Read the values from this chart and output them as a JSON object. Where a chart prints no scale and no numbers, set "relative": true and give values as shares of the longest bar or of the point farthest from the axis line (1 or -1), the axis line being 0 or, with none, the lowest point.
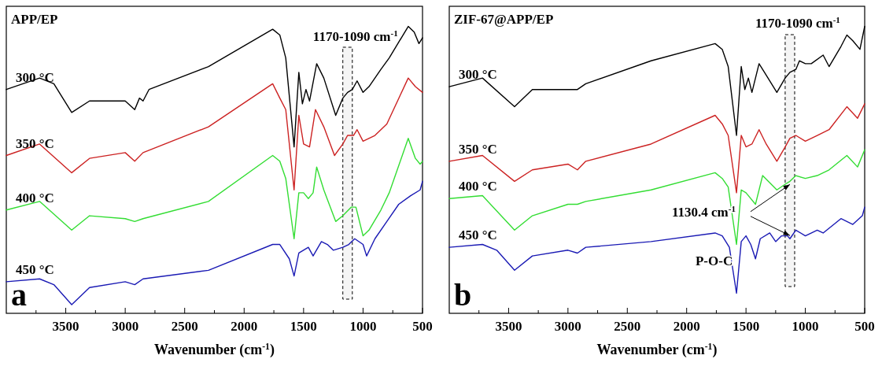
{
  "chart_data": [
    {
      "type": "line",
      "title": "APP/EP",
      "xlabel": "Wavenumber (cm$^{-1}$)",
      "relative": true,
      "xlim": [
        4000,
        500
      ],
      "xticks": [
        {
          "value": 3750,
          "label": null
        },
        3500,
        {
          "value": 3250,
          "label": null
        },
        3000,
        {
          "value": 2750,
          "label": null
        },
        2500,
        {
          "value": 2250,
          "label": null
        },
        2000,
        {
          "value": 1750,
          "label": null
        },
        1500,
        {
          "value": 1250,
          "label": null
        },
        1000,
        {
          "value": 750,
          "label": null
        },
        500
      ],
      "tick_labels": "x",
      "grid": false,
      "marker": "none",
      "line_style": "solid",
      "bands": [
        {
          "axis": "x",
          "from": 1170,
          "to": 1090,
          "label": "1170-1090 cm$^{-1}$"
        }
      ],
      "annotations": [
        "a"
      ],
      "series": [
        {
          "name": "300 °C",
          "color": "#000000",
          "x": [
            4000,
            3720,
            3600,
            3450,
            3300,
            3000,
            2920,
            2880,
            2850,
            2800,
            2300,
            1760,
            1700,
            1650,
            1580,
            1540,
            1510,
            1480,
            1450,
            1390,
            1330,
            1230,
            1170,
            1130,
            1090,
            1050,
            1000,
            950,
            850,
            780,
            620,
            570,
            530,
            500
          ],
          "values": [
            0.78,
            0.82,
            0.8,
            0.7,
            0.74,
            0.74,
            0.71,
            0.75,
            0.74,
            0.78,
            0.86,
            0.99,
            0.97,
            0.89,
            0.58,
            0.84,
            0.73,
            0.78,
            0.74,
            0.87,
            0.82,
            0.69,
            0.75,
            0.77,
            0.78,
            0.81,
            0.77,
            0.79,
            0.85,
            0.89,
            1,
            0.98,
            0.94,
            0.96
          ]
        },
        {
          "name": "350 °C",
          "color": "#cc2222",
          "x": [
            4000,
            3720,
            3450,
            3300,
            3000,
            2920,
            2850,
            2300,
            1760,
            1700,
            1650,
            1580,
            1540,
            1500,
            1450,
            1400,
            1330,
            1240,
            1170,
            1130,
            1080,
            1050,
            1000,
            900,
            800,
            620,
            560,
            500
          ],
          "values": [
            0.55,
            0.59,
            0.49,
            0.54,
            0.56,
            0.53,
            0.56,
            0.65,
            0.8,
            0.75,
            0.71,
            0.43,
            0.69,
            0.59,
            0.58,
            0.71,
            0.65,
            0.55,
            0.59,
            0.62,
            0.62,
            0.64,
            0.6,
            0.62,
            0.66,
            0.82,
            0.79,
            0.77
          ]
        },
        {
          "name": "400 °C",
          "color": "#33dd33",
          "x": [
            4000,
            3720,
            3450,
            3300,
            3000,
            2920,
            2850,
            2300,
            1760,
            1700,
            1650,
            1580,
            1540,
            1500,
            1460,
            1420,
            1390,
            1330,
            1230,
            1170,
            1100,
            1060,
            1000,
            950,
            850,
            780,
            620,
            560,
            520,
            500
          ],
          "values": [
            0.36,
            0.39,
            0.29,
            0.34,
            0.33,
            0.32,
            0.33,
            0.39,
            0.55,
            0.53,
            0.47,
            0.26,
            0.42,
            0.42,
            0.4,
            0.42,
            0.51,
            0.43,
            0.32,
            0.34,
            0.37,
            0.37,
            0.27,
            0.29,
            0.36,
            0.42,
            0.61,
            0.54,
            0.52,
            0.53
          ]
        },
        {
          "name": "450 °C",
          "color": "#1a1ab4",
          "x": [
            4000,
            3720,
            3600,
            3450,
            3300,
            3000,
            2920,
            2850,
            2300,
            1760,
            1700,
            1620,
            1580,
            1540,
            1460,
            1420,
            1350,
            1300,
            1250,
            1170,
            1120,
            1070,
            1000,
            970,
            900,
            800,
            700,
            600,
            520,
            500
          ],
          "values": [
            0.11,
            0.12,
            0.1,
            0.03,
            0.09,
            0.11,
            0.1,
            0.12,
            0.15,
            0.24,
            0.24,
            0.19,
            0.13,
            0.21,
            0.23,
            0.2,
            0.25,
            0.24,
            0.22,
            0.23,
            0.24,
            0.26,
            0.24,
            0.2,
            0.26,
            0.32,
            0.38,
            0.41,
            0.43,
            0.46
          ]
        }
      ]
    },
    {
      "type": "line",
      "title": "ZIF-67@APP/EP",
      "xlabel": "Wavenumber (cm$^{-1}$)",
      "relative": true,
      "xlim": [
        4000,
        500
      ],
      "xticks": [
        {
          "value": 3750,
          "label": null
        },
        3500,
        {
          "value": 3250,
          "label": null
        },
        3000,
        {
          "value": 2750,
          "label": null
        },
        2500,
        {
          "value": 2250,
          "label": null
        },
        2000,
        {
          "value": 1750,
          "label": null
        },
        1500,
        {
          "value": 1250,
          "label": null
        },
        1000,
        {
          "value": 750,
          "label": null
        },
        500
      ],
      "tick_labels": "x",
      "grid": false,
      "marker": "none",
      "line_style": "solid",
      "bands": [
        {
          "axis": "x",
          "from": 1170,
          "to": 1090,
          "label": "1170-1090 cm$^{-1}$"
        }
      ],
      "annotations": [
        "1130.4 cm$^{-1}$",
        "P-O-C",
        "b"
      ],
      "series": [
        {
          "name": "300 °C",
          "color": "#000000",
          "x": [
            4000,
            3720,
            3450,
            3300,
            3000,
            2920,
            2850,
            2300,
            1760,
            1700,
            1650,
            1580,
            1540,
            1510,
            1480,
            1450,
            1390,
            1330,
            1240,
            1170,
            1130,
            1080,
            1050,
            1000,
            950,
            850,
            800,
            700,
            650,
            600,
            540,
            500
          ],
          "values": [
            0.79,
            0.82,
            0.72,
            0.78,
            0.78,
            0.78,
            0.8,
            0.88,
            0.94,
            0.92,
            0.86,
            0.62,
            0.86,
            0.78,
            0.82,
            0.77,
            0.87,
            0.83,
            0.77,
            0.82,
            0.84,
            0.85,
            0.88,
            0.87,
            0.87,
            0.9,
            0.86,
            0.93,
            0.97,
            0.95,
            0.92,
            1
          ]
        },
        {
          "name": "350 °C",
          "color": "#cc2222",
          "x": [
            4000,
            3720,
            3450,
            3300,
            3000,
            2920,
            2850,
            2300,
            1760,
            1700,
            1650,
            1580,
            1540,
            1500,
            1450,
            1390,
            1330,
            1240,
            1170,
            1130,
            1080,
            1000,
            900,
            800,
            650,
            560,
            500
          ],
          "values": [
            0.53,
            0.55,
            0.46,
            0.5,
            0.52,
            0.5,
            0.53,
            0.59,
            0.69,
            0.66,
            0.62,
            0.42,
            0.62,
            0.58,
            0.59,
            0.64,
            0.59,
            0.53,
            0.58,
            0.61,
            0.62,
            0.6,
            0.62,
            0.64,
            0.72,
            0.68,
            0.73
          ]
        },
        {
          "name": "400 °C",
          "color": "#33dd33",
          "x": [
            4000,
            3720,
            3450,
            3300,
            3000,
            2920,
            2850,
            2300,
            1760,
            1700,
            1650,
            1580,
            1540,
            1500,
            1420,
            1360,
            1240,
            1170,
            1130,
            1080,
            1000,
            900,
            800,
            650,
            560,
            500
          ],
          "values": [
            0.4,
            0.41,
            0.29,
            0.34,
            0.38,
            0.38,
            0.39,
            0.43,
            0.49,
            0.47,
            0.44,
            0.24,
            0.43,
            0.42,
            0.38,
            0.48,
            0.43,
            0.45,
            0.46,
            0.48,
            0.47,
            0.48,
            0.5,
            0.55,
            0.51,
            0.57
          ]
        },
        {
          "name": "450 °C",
          "color": "#1a1ab4",
          "x": [
            4000,
            3720,
            3600,
            3450,
            3300,
            3000,
            2920,
            2850,
            2300,
            1760,
            1700,
            1640,
            1580,
            1540,
            1500,
            1460,
            1420,
            1380,
            1300,
            1250,
            1200,
            1150,
            1130,
            1080,
            1000,
            900,
            850,
            700,
            600,
            520,
            500
          ],
          "values": [
            0.23,
            0.24,
            0.22,
            0.15,
            0.2,
            0.22,
            0.21,
            0.23,
            0.25,
            0.28,
            0.27,
            0.23,
            0.07,
            0.25,
            0.27,
            0.24,
            0.19,
            0.26,
            0.28,
            0.25,
            0.27,
            0.27,
            0.26,
            0.29,
            0.27,
            0.29,
            0.28,
            0.33,
            0.31,
            0.34,
            0.37
          ]
        }
      ]
    }
  ]
}
